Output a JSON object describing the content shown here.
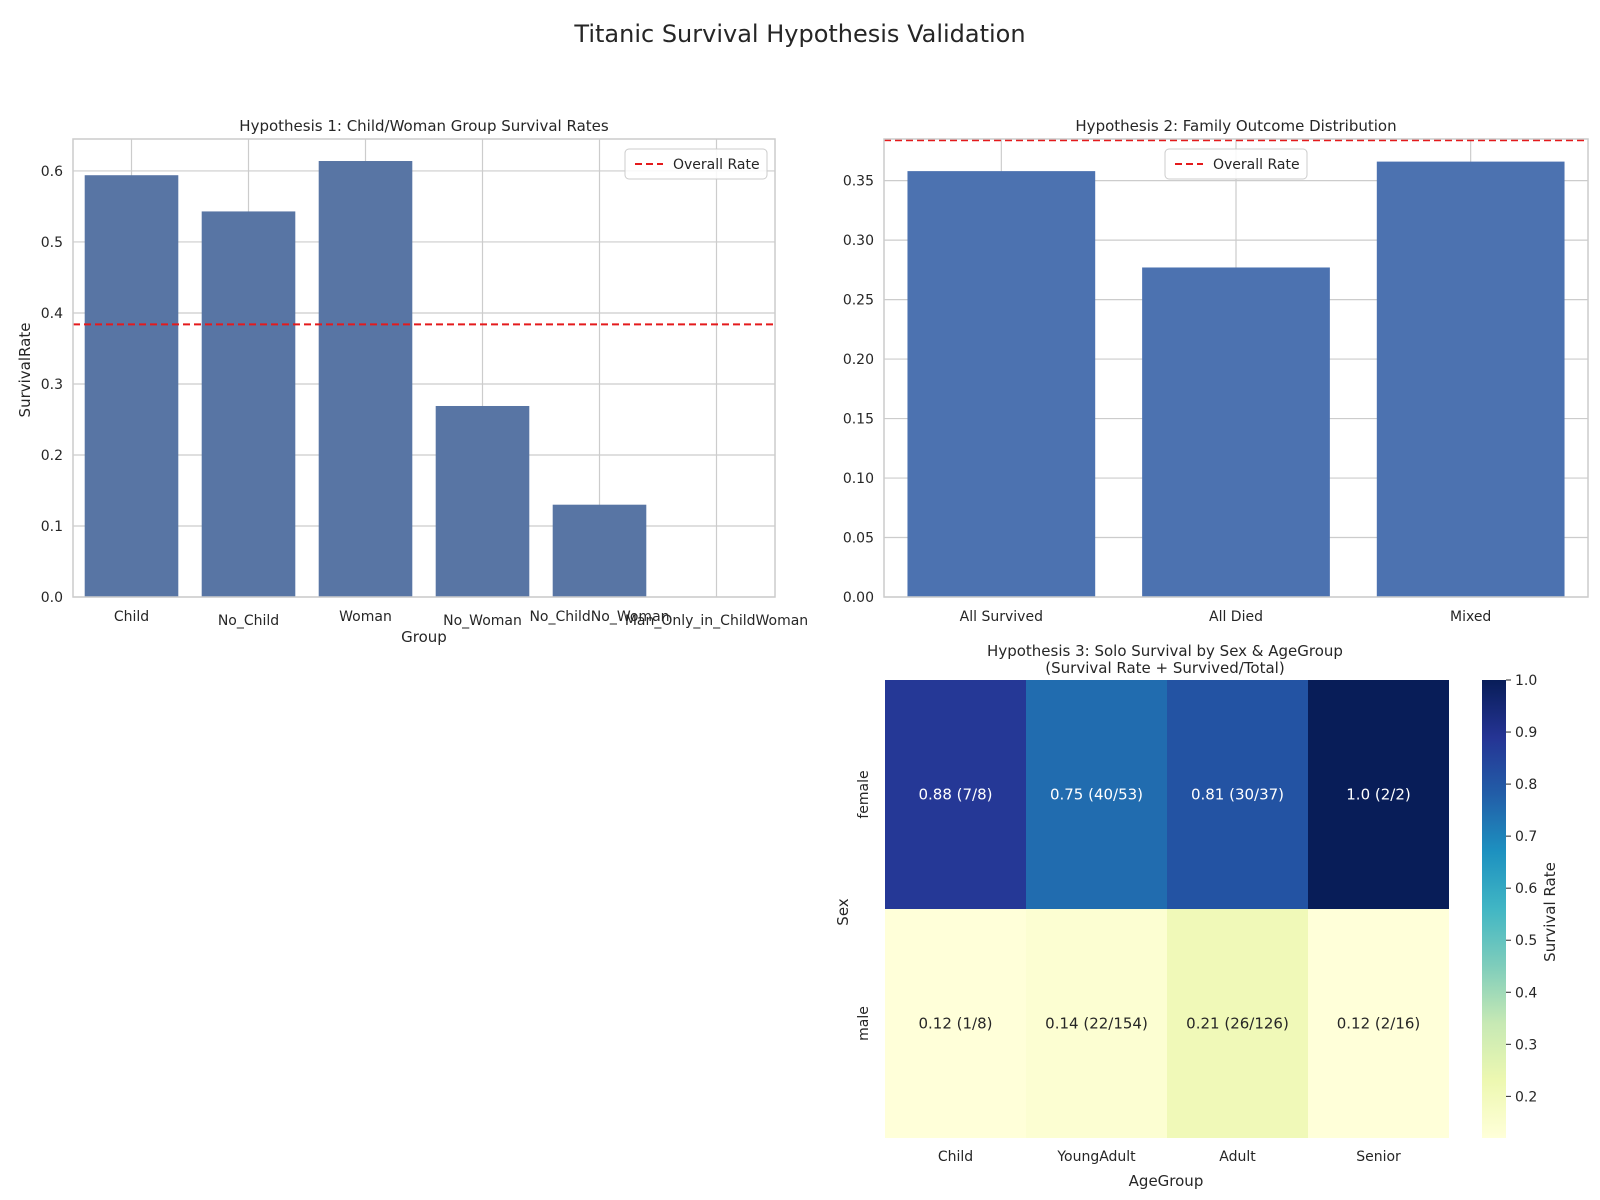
{
  "suptitle": "Titanic Survival Hypothesis Validation",
  "chart_data": [
    {
      "type": "bar",
      "title": "Hypothesis 1: Child/Woman Group Survival Rates",
      "xlabel": "Group",
      "ylabel": "SurvivalRate",
      "categories": [
        "Child",
        "No_Child",
        "Woman",
        "No_Woman",
        "No_ChildNo_Woman",
        "Man_Only_in_ChildWoman"
      ],
      "values": [
        0.594,
        0.543,
        0.614,
        0.269,
        0.13,
        0.0
      ],
      "ylim": [
        0,
        0.645
      ],
      "yticks": [
        "0.0",
        "0.1",
        "0.2",
        "0.3",
        "0.4",
        "0.5",
        "0.6"
      ],
      "reference_line": {
        "label": "Overall Rate",
        "value": 0.384,
        "color": "#e41a1c"
      },
      "legend": "top-right",
      "bar_color": "#5875a4",
      "grid": true
    },
    {
      "type": "bar",
      "title": "Hypothesis 2: Family Outcome Distribution",
      "xlabel": "",
      "ylabel": "",
      "categories": [
        "All Survived",
        "All Died",
        "Mixed"
      ],
      "values": [
        0.358,
        0.277,
        0.366
      ],
      "ylim": [
        0,
        0.385
      ],
      "yticks": [
        "0.00",
        "0.05",
        "0.10",
        "0.15",
        "0.20",
        "0.25",
        "0.30",
        "0.35"
      ],
      "reference_line": {
        "label": "Overall Rate",
        "value": 0.384,
        "color": "#e41a1c"
      },
      "legend": "top-center",
      "bar_color": "#4c72b0",
      "grid": true
    },
    {
      "type": "heatmap",
      "title": "Hypothesis 3: Solo Survival by Sex & AgeGroup",
      "subtitle": "(Survival Rate + Survived/Total)",
      "xlabel": "AgeGroup",
      "ylabel": "Sex",
      "x": [
        "Child",
        "YoungAdult",
        "Adult",
        "Senior"
      ],
      "y": [
        "female",
        "male"
      ],
      "values": [
        [
          0.88,
          0.75,
          0.81,
          1.0
        ],
        [
          0.12,
          0.14,
          0.21,
          0.12
        ]
      ],
      "annotations": [
        [
          "0.88 (7/8)",
          "0.75 (40/53)",
          "0.81 (30/37)",
          "1.0 (2/2)"
        ],
        [
          "0.12 (1/8)",
          "0.14 (22/154)",
          "0.21 (26/126)",
          "0.12 (2/16)"
        ]
      ],
      "colorbar": {
        "label": "Survival Rate",
        "range": [
          0.12,
          1.0
        ],
        "ticks": [
          "0.2",
          "0.3",
          "0.4",
          "0.5",
          "0.6",
          "0.7",
          "0.8",
          "0.9",
          "1.0"
        ],
        "colormap": "YlGnBu"
      }
    }
  ]
}
